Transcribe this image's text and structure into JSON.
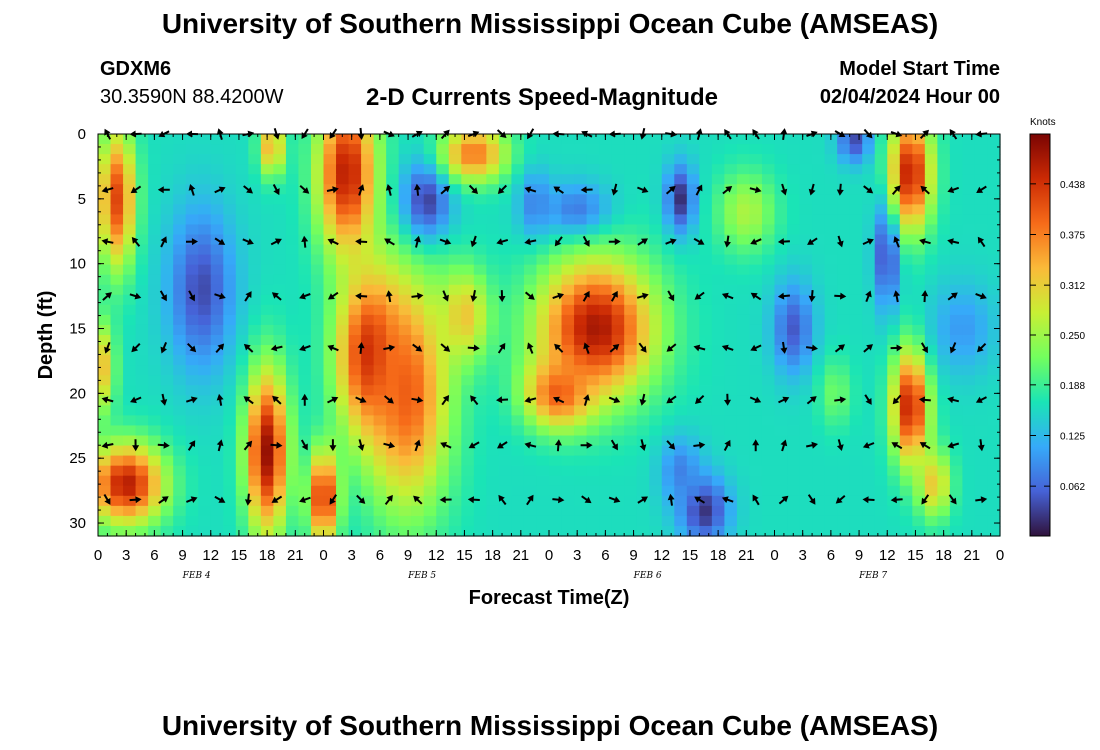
{
  "header": {
    "title_top": "University of Southern Mississippi Ocean Cube (AMSEAS)",
    "station_id": "GDXM6",
    "coords": "30.3590N  88.4200W",
    "subtitle": "2-D Currents Speed-Magnitude",
    "model_start_label": "Model Start Time",
    "model_start_value": "02/04/2024 Hour 00",
    "title_bottom": "University of Southern Mississippi Ocean Cube (AMSEAS)"
  },
  "colors": {
    "colormap": [
      "#30123b",
      "#4662d7",
      "#36aaf9",
      "#1ae4b6",
      "#72fe5e",
      "#c8ef34",
      "#faba39",
      "#f66b19",
      "#cb2a04",
      "#7a0403"
    ],
    "arrow": "#000000"
  },
  "chart_data": {
    "type": "heatmap",
    "xlabel": "Forecast Time(Z)",
    "ylabel": "Depth (ft)",
    "x_hours": [
      0,
      96
    ],
    "x_ticks": [
      "0",
      "3",
      "6",
      "9",
      "12",
      "15",
      "18",
      "21",
      "0",
      "3",
      "6",
      "9",
      "12",
      "15",
      "18",
      "21",
      "0",
      "3",
      "6",
      "9",
      "12",
      "15",
      "18",
      "21",
      "0",
      "3",
      "6",
      "9",
      "12",
      "15",
      "18",
      "21",
      "0"
    ],
    "date_labels": [
      "FEB 4",
      "FEB 5",
      "FEB 6",
      "FEB 7"
    ],
    "date_label_hours": [
      10.5,
      34.5,
      58.5,
      82.5
    ],
    "ylim": [
      31,
      0
    ],
    "y_ticks": [
      0,
      5,
      10,
      15,
      20,
      25,
      30
    ],
    "colorbar": {
      "title": "Knots",
      "range": [
        0,
        0.5
      ],
      "ticks": [
        "0.062",
        "0.125",
        "0.188",
        "0.250",
        "0.312",
        "0.375",
        "0.438"
      ],
      "tick_values": [
        0.062,
        0.125,
        0.188,
        0.25,
        0.312,
        0.375,
        0.438
      ]
    },
    "arrow_depths": [
      0,
      4.3,
      8.3,
      12.5,
      16.5,
      20.5,
      24,
      28.2
    ],
    "arrow_hours_step": 3,
    "blobs": [
      {
        "h": 2,
        "d": 5,
        "rh": 2.2,
        "rd": 6,
        "v": 0.42
      },
      {
        "h": 3,
        "d": 27,
        "rh": 4.5,
        "rd": 3.5,
        "v": 0.46
      },
      {
        "h": 0.5,
        "d": 18,
        "rh": 1.5,
        "rd": 4,
        "v": 0.32
      },
      {
        "h": 11,
        "d": 12,
        "rh": 4,
        "rd": 7,
        "v": 0.04
      },
      {
        "h": 18.5,
        "d": 1,
        "rh": 1.5,
        "rd": 2.5,
        "v": 0.35
      },
      {
        "h": 18,
        "d": 24.5,
        "rh": 2.5,
        "rd": 7,
        "v": 0.48
      },
      {
        "h": 26.5,
        "d": 3,
        "rh": 3.5,
        "rd": 7,
        "v": 0.46
      },
      {
        "h": 24,
        "d": 28,
        "rh": 1.8,
        "rd": 4,
        "v": 0.45
      },
      {
        "h": 29,
        "d": 17,
        "rh": 4,
        "rd": 7,
        "v": 0.46
      },
      {
        "h": 33,
        "d": 20,
        "rh": 5,
        "rd": 10,
        "v": 0.4
      },
      {
        "h": 35,
        "d": 5,
        "rh": 3,
        "rd": 3.5,
        "v": 0.03
      },
      {
        "h": 40,
        "d": 1.5,
        "rh": 4,
        "rd": 2.5,
        "v": 0.38
      },
      {
        "h": 39,
        "d": 14,
        "rh": 3,
        "rd": 4,
        "v": 0.32
      },
      {
        "h": 46.5,
        "d": 5.5,
        "rh": 2,
        "rd": 3,
        "v": 0.08
      },
      {
        "h": 51,
        "d": 6,
        "rh": 4,
        "rd": 2.5,
        "v": 0.06
      },
      {
        "h": 53,
        "d": 15,
        "rh": 7,
        "rd": 6,
        "v": 0.47
      },
      {
        "h": 49,
        "d": 20,
        "rh": 4,
        "rd": 3,
        "v": 0.4
      },
      {
        "h": 62,
        "d": 5,
        "rh": 1.8,
        "rd": 3,
        "v": 0.02
      },
      {
        "h": 64.5,
        "d": 29,
        "rh": 3,
        "rd": 3,
        "v": 0.02
      },
      {
        "h": 62,
        "d": 26,
        "rh": 2.5,
        "rd": 3,
        "v": 0.08
      },
      {
        "h": 69,
        "d": 6,
        "rh": 3.5,
        "rd": 3.5,
        "v": 0.26
      },
      {
        "h": 74,
        "d": 15,
        "rh": 2.5,
        "rd": 4,
        "v": 0.05
      },
      {
        "h": 78.5,
        "d": 20,
        "rh": 2,
        "rd": 3,
        "v": 0.22
      },
      {
        "h": 80.5,
        "d": 0.5,
        "rh": 2,
        "rd": 2,
        "v": 0.04
      },
      {
        "h": 84,
        "d": 9,
        "rh": 1.5,
        "rd": 5,
        "v": 0.02
      },
      {
        "h": 86.5,
        "d": 3,
        "rh": 2.5,
        "rd": 5,
        "v": 0.46
      },
      {
        "h": 86.5,
        "d": 21,
        "rh": 2.2,
        "rd": 5,
        "v": 0.46
      },
      {
        "h": 89,
        "d": 27,
        "rh": 2,
        "rd": 3,
        "v": 0.32
      },
      {
        "h": 92,
        "d": 15,
        "rh": 4,
        "rd": 4,
        "v": 0.1
      }
    ]
  }
}
